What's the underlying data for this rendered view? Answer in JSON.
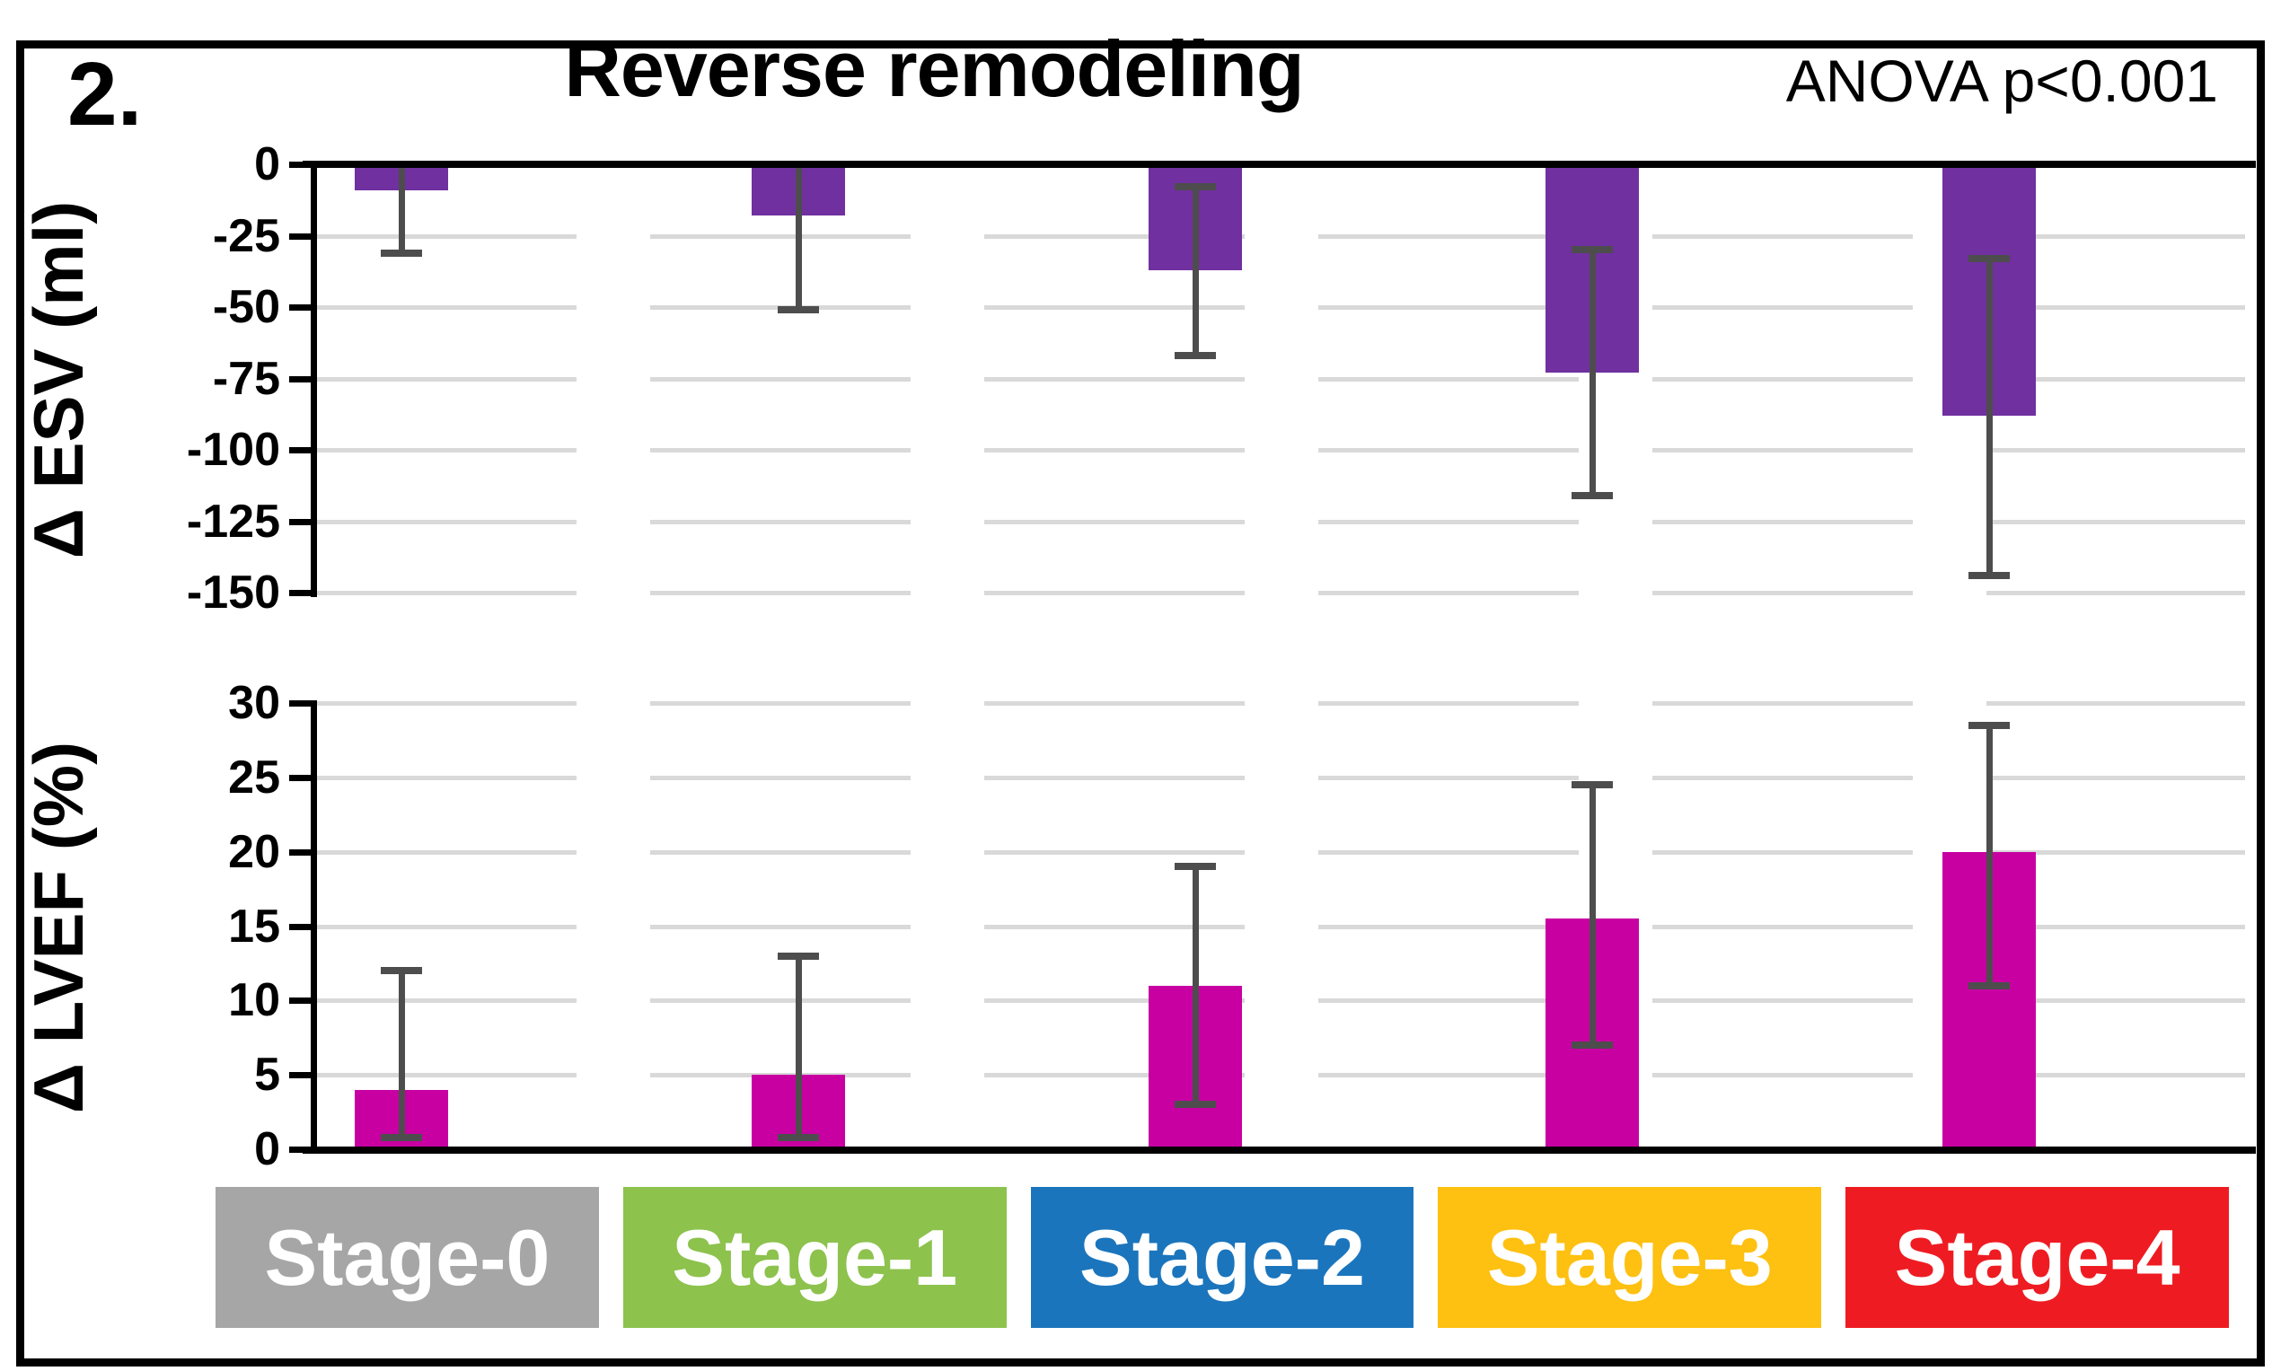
{
  "panel_label": "2.",
  "title": "Reverse remodeling",
  "annotation": "ANOVA p<0.001",
  "colors": {
    "esv_bar": "#7030A0",
    "lvef_bar": "#C800A2",
    "error_bar": "#4d4d4d",
    "gridline": "#d9d9d9",
    "axis": "#000000",
    "stage_text": "#ffffff"
  },
  "categories": [
    {
      "label": "Stage-0",
      "color": "#A6A6A6"
    },
    {
      "label": "Stage-1",
      "color": "#8DC24D"
    },
    {
      "label": "Stage-2",
      "color": "#1B75BC"
    },
    {
      "label": "Stage-3",
      "color": "#FEC011"
    },
    {
      "label": "Stage-4",
      "color": "#EE1C22"
    }
  ],
  "chart_data": [
    {
      "type": "bar",
      "id": "esv",
      "title": "Reverse remodeling",
      "ylabel": "Δ ESV (ml)",
      "xlabel": "",
      "categories": [
        "Stage-0",
        "Stage-1",
        "Stage-2",
        "Stage-3",
        "Stage-4"
      ],
      "series": [
        {
          "name": "Δ ESV (ml)",
          "values": [
            -9,
            -18,
            -37,
            -73,
            -88
          ],
          "error_high": [
            0,
            0,
            -8,
            -30,
            -33
          ],
          "error_high_cap": [
            false,
            false,
            true,
            true,
            true
          ],
          "error_low": [
            -31,
            -51,
            -67,
            -116,
            -144
          ],
          "error_low_cap": [
            true,
            true,
            true,
            true,
            true
          ]
        }
      ],
      "ylim": [
        -150,
        0
      ],
      "yticks": [
        0,
        -25,
        -50,
        -75,
        -100,
        -125,
        -150
      ],
      "grid": "horizontal-broken",
      "legend": "none",
      "annotation": "ANOVA p<0.001"
    },
    {
      "type": "bar",
      "id": "lvef",
      "title": "",
      "ylabel": "Δ LVEF (%)",
      "xlabel": "",
      "categories": [
        "Stage-0",
        "Stage-1",
        "Stage-2",
        "Stage-3",
        "Stage-4"
      ],
      "series": [
        {
          "name": "Δ LVEF (%)",
          "values": [
            4,
            5,
            11,
            15.5,
            20
          ],
          "error_high": [
            12,
            13,
            19,
            24.5,
            28.5
          ],
          "error_high_cap": [
            true,
            true,
            true,
            true,
            true
          ],
          "error_low": [
            0.8,
            0.8,
            3,
            7,
            11
          ],
          "error_low_cap": [
            true,
            true,
            true,
            true,
            true
          ]
        }
      ],
      "ylim": [
        0,
        30
      ],
      "yticks": [
        30,
        25,
        20,
        15,
        10,
        5,
        0
      ],
      "grid": "horizontal-broken",
      "legend": "none"
    }
  ]
}
